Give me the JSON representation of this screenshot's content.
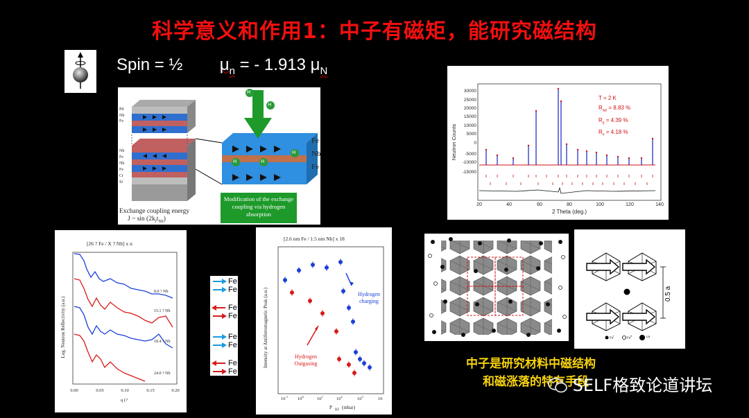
{
  "slide": {
    "title": "科学意义和作用1：中子有磁矩，能研究磁结构",
    "spin_label": "Spin = ½",
    "mu_symbol": "μ",
    "mu_sub": "n",
    "mu_eq": " = - 1.913 ",
    "mu_unit_symbol": "μ",
    "mu_unit_sub": "N"
  },
  "multilayer": {
    "left_labels": [
      "Pd",
      "Nb",
      "Fe",
      "Nb",
      "Fe",
      "Nb",
      "Fe",
      "Cr",
      "Si"
    ],
    "right_labels": [
      "Fe",
      "Nb",
      "Fe"
    ],
    "h_atom": "H",
    "green_box_text": "Modification of the exchange coupling via hydrogen absorption",
    "caption_line1": "Exchange coupling energy",
    "caption_line2": "J ~ sin (2k",
    "caption_line2_sub": "f",
    "caption_line2_end": "t",
    "caption_line2_sub2": "Nb",
    "caption_line2_close": ")"
  },
  "diffraction": {
    "annotation_T": "T = 2 K",
    "annotation_Rwp": "R",
    "annotation_Rwp_sub": "wp",
    "annotation_Rwp_val": " = 8.83 %",
    "annotation_Rp": "R",
    "annotation_Rp_sub": "p",
    "annotation_Rp_val": " = 4.39 %",
    "annotation_Re": "R",
    "annotation_Re_sub": "e",
    "annotation_Re_val": " = 4.18 %",
    "colors": {
      "observed": "#d01010",
      "calculated": "#1020c0",
      "difference": "#111111",
      "ticks": "#d01010"
    }
  },
  "reflectivity": {
    "title": "[26 ? Fe / X ? Nb] x n",
    "series_labels": [
      "8.0 ? Nb",
      "15.1 ? Nb",
      "18.4 ? Nb",
      "24.0 ? Nb"
    ],
    "colors": {
      "blue": "#1a3fd8",
      "red": "#d81a1a"
    }
  },
  "spin_legend": {
    "rows": [
      {
        "label": "Fe",
        "dir": "right",
        "color": "#1a9be0"
      },
      {
        "label": "Fe",
        "dir": "right",
        "color": "#1a9be0"
      },
      {
        "label": "Fe",
        "dir": "left",
        "color": "#d81a1a"
      },
      {
        "label": "Fe",
        "dir": "right",
        "color": "#d81a1a"
      },
      {
        "label": "Fe",
        "dir": "right",
        "color": "#1a9be0"
      },
      {
        "label": "Fe",
        "dir": "right",
        "color": "#1a9be0"
      },
      {
        "label": "Fe",
        "dir": "left",
        "color": "#d81a1a"
      },
      {
        "label": "Fe",
        "dir": "right",
        "color": "#d81a1a"
      }
    ]
  },
  "afm_peak": {
    "title": "[2.6 nm Fe / 1.5 nm Nb] x 18",
    "xticks": [
      "10",
      "10",
      "10",
      "10",
      "10",
      "10"
    ],
    "xtick_exps": [
      "-1",
      "0",
      "1",
      "2",
      "3",
      ""
    ],
    "hydrogen_charging": "Hydrogen charging",
    "hydrogen_outgasing": "Hydrogen Outgasing",
    "colors": {
      "charging": "#1a3fd8",
      "outgasing": "#d81a1a"
    }
  },
  "crystal": {
    "legend_labels": [
      "Fe",
      "Fe",
      "La"
    ],
    "legend_sups": [
      "I",
      "II",
      ""
    ],
    "scale_label": "0.5 a"
  },
  "footer": {
    "note_line1": "中子是研究材料中磁结构",
    "note_line2": "和磁涨落的特有手段",
    "watermark": "SELF格致论道讲坛"
  }
}
